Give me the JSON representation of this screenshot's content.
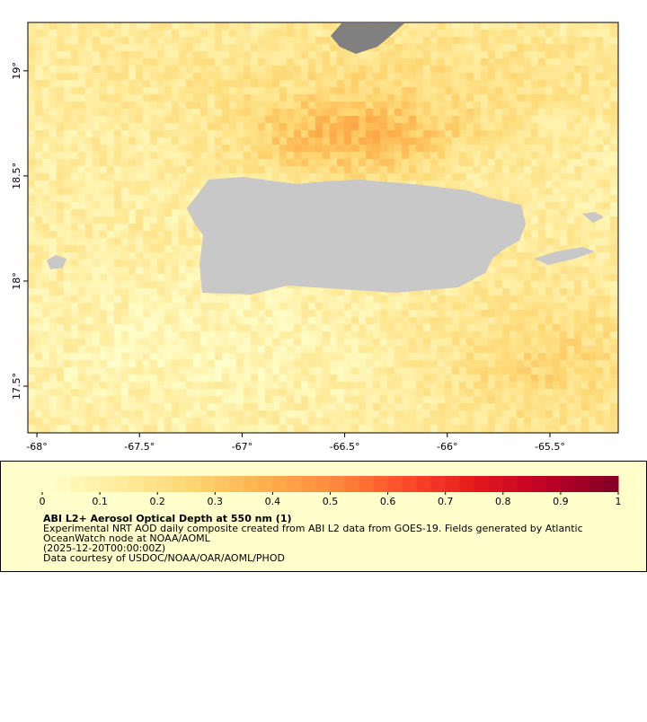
{
  "map": {
    "xlim": [
      -68.044,
      -65.167
    ],
    "ylim": [
      17.278,
      19.23
    ],
    "xticks": [
      {
        "value": -68,
        "label": "-68°"
      },
      {
        "value": -67.5,
        "label": "-67.5°"
      },
      {
        "value": -67,
        "label": "-67°"
      },
      {
        "value": -66.5,
        "label": "-66.5°"
      },
      {
        "value": -66,
        "label": "-66°"
      },
      {
        "value": -65.5,
        "label": "-65.5°"
      }
    ],
    "yticks": [
      {
        "value": 19,
        "label": "19°"
      },
      {
        "value": 18.5,
        "label": "18.5°"
      },
      {
        "value": 18,
        "label": "18°"
      },
      {
        "value": 17.5,
        "label": "17.5°"
      }
    ]
  },
  "colorbar": {
    "range": [
      0,
      1
    ],
    "ticks": [
      0,
      0.1,
      0.2,
      0.3,
      0.4,
      0.5,
      0.6,
      0.7,
      0.8,
      0.9,
      1
    ],
    "colors": [
      "#ffffcc",
      "#ffeda0",
      "#fed976",
      "#feb24c",
      "#fd8d3c",
      "#fc4e2a",
      "#e31a1c",
      "#bd0026",
      "#800026"
    ]
  },
  "legend": {
    "title": "ABI L2+ Aerosol Optical Depth at 550 nm (1)",
    "lines": [
      "Experimental NRT AOD daily composite created from ABI L2 data from GOES-19. Fields generated by Atlantic",
      "OceanWatch node at NOAA/AOML",
      "(2025-12-20T00:00:00Z)",
      "Data courtesy of USDOC/NOAA/OAR/AOML/PHOD"
    ]
  }
}
